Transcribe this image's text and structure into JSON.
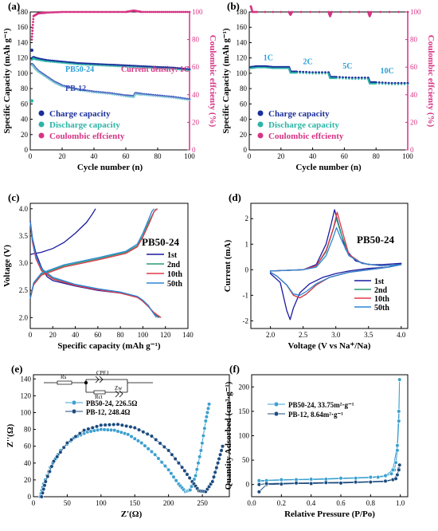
{
  "chart_data": [
    {
      "panel": "(a)",
      "type": "scatter",
      "xlabel": "Cycle number (n)",
      "ylabel": "Specific Capacity (mAh g⁻¹)",
      "y2label": "Coulombic effcienty (%)",
      "xlim": [
        0,
        100
      ],
      "ylim": [
        0,
        180
      ],
      "y2lim": [
        0,
        100
      ],
      "xticks": [
        "0",
        "20",
        "40",
        "60",
        "80",
        "100"
      ],
      "yticks": [
        "0",
        "20",
        "40",
        "60",
        "80",
        "100",
        "120",
        "140",
        "160",
        "180"
      ],
      "y2ticks": [
        "0",
        "20",
        "40",
        "60",
        "80",
        "100"
      ],
      "annotations": [
        "PB50-24",
        "Current density: 1C",
        "PB-12"
      ],
      "legend": [
        "Charge capacity",
        "Discharge capacity",
        "Coulombic effcienty"
      ],
      "legend_position": "bottom-left",
      "series": [
        {
          "name": "PB50-24 charge",
          "x": [
            1,
            2,
            3,
            5,
            10,
            20,
            30,
            40,
            50,
            60,
            70,
            80,
            90,
            100
          ],
          "y": [
            119,
            121,
            120,
            119,
            117,
            115,
            113,
            112,
            111,
            110,
            109,
            108,
            107,
            105
          ]
        },
        {
          "name": "PB-12 charge",
          "x": [
            1,
            2,
            3,
            5,
            10,
            15,
            20,
            30,
            40,
            50,
            60,
            65,
            66,
            70,
            80,
            90,
            100
          ],
          "y": [
            112,
            110,
            107,
            103,
            96,
            89,
            84,
            79,
            76,
            74,
            71,
            70,
            74,
            73,
            71,
            69,
            66
          ]
        },
        {
          "name": "Coulombic effcienty",
          "axis": "y2",
          "x": [
            1,
            2,
            5,
            10,
            20,
            30,
            40,
            50,
            60,
            65,
            70,
            80,
            90,
            100
          ],
          "y": [
            80,
            97,
            99,
            99.5,
            100,
            100,
            100,
            100,
            100,
            101,
            100,
            100,
            100,
            100
          ]
        }
      ]
    },
    {
      "panel": "(b)",
      "type": "scatter",
      "xlabel": "Cycle number (n)",
      "ylabel": "Specific Capacity (mAh g⁻¹)",
      "y2label": "Coulombic effcienty (%)",
      "xlim": [
        0,
        100
      ],
      "ylim": [
        0,
        180
      ],
      "y2lim": [
        0,
        100
      ],
      "xticks": [
        "0",
        "20",
        "40",
        "60",
        "80",
        "100"
      ],
      "yticks": [
        "0",
        "20",
        "40",
        "60",
        "80",
        "100",
        "120",
        "140",
        "160",
        "180"
      ],
      "y2ticks": [
        "0",
        "20",
        "40",
        "60",
        "80",
        "100"
      ],
      "annotations": [
        "1C",
        "2C",
        "5C",
        "10C"
      ],
      "legend": [
        "Charge capacity",
        "Discharge capacity",
        "Coulombic effcienty"
      ],
      "legend_position": "bottom-left",
      "series": [
        {
          "name": "Charge capacity",
          "x": [
            1,
            5,
            10,
            15,
            20,
            25,
            26,
            30,
            40,
            50,
            51,
            55,
            65,
            75,
            76,
            80,
            90,
            100
          ],
          "y": [
            108,
            109,
            109,
            108,
            108,
            108,
            102,
            102,
            101,
            101,
            95,
            95,
            94,
            94,
            88,
            88,
            87,
            87
          ]
        },
        {
          "name": "Coulombic effcienty",
          "axis": "y2",
          "x": [
            1,
            2,
            5,
            25,
            26,
            27,
            50,
            51,
            52,
            75,
            76,
            77,
            100
          ],
          "y": [
            104,
            100,
            100,
            100,
            98,
            100,
            100,
            97,
            100,
            100,
            97,
            100,
            100
          ]
        }
      ]
    },
    {
      "panel": "(c)",
      "type": "line",
      "xlabel": "Specific capacity (mAh g⁻¹)",
      "ylabel": "Voltage (V)",
      "title": "PB50-24",
      "xlim": [
        0,
        140
      ],
      "ylim": [
        1.8,
        4.1
      ],
      "xticks": [
        "0",
        "20",
        "40",
        "60",
        "80",
        "100",
        "120",
        "140"
      ],
      "yticks": [
        "2.0",
        "2.5",
        "3.0",
        "3.5",
        "4.0"
      ],
      "legend": [
        "1st",
        "2nd",
        "10th",
        "50th"
      ],
      "legend_position": "right",
      "colors": [
        "#1a1aa0",
        "#2b9a73",
        "#e0384a",
        "#2c86d6"
      ],
      "series": [
        {
          "name": "1st charge",
          "x": [
            0,
            2,
            10,
            20,
            30,
            40,
            50,
            55,
            58
          ],
          "y": [
            3.16,
            3.17,
            3.2,
            3.27,
            3.38,
            3.55,
            3.75,
            3.9,
            4.0
          ]
        },
        {
          "name": "1st discharge",
          "x": [
            0,
            2,
            5,
            10,
            15,
            20,
            40,
            60,
            80,
            95,
            100,
            105,
            110,
            114
          ],
          "y": [
            3.78,
            3.45,
            3.18,
            2.92,
            2.75,
            2.68,
            2.58,
            2.5,
            2.45,
            2.38,
            2.3,
            2.2,
            2.08,
            2.0
          ]
        },
        {
          "name": "2nd charge",
          "x": [
            0,
            3,
            10,
            30,
            60,
            85,
            95,
            100,
            105,
            110,
            112
          ],
          "y": [
            2.35,
            2.62,
            2.8,
            2.95,
            3.08,
            3.2,
            3.32,
            3.5,
            3.75,
            3.95,
            4.0
          ]
        },
        {
          "name": "2nd discharge",
          "x": [
            0,
            2,
            5,
            10,
            20,
            40,
            60,
            80,
            95,
            100,
            105,
            110,
            115
          ],
          "y": [
            3.75,
            3.4,
            3.1,
            2.88,
            2.72,
            2.6,
            2.52,
            2.46,
            2.38,
            2.3,
            2.2,
            2.08,
            2.0
          ]
        },
        {
          "name": "10th charge",
          "x": [
            0,
            3,
            10,
            30,
            60,
            85,
            95,
            100,
            106,
            110,
            113
          ],
          "y": [
            2.35,
            2.6,
            2.78,
            2.93,
            3.06,
            3.18,
            3.3,
            3.48,
            3.75,
            3.95,
            4.0
          ]
        },
        {
          "name": "10th discharge",
          "x": [
            0,
            2,
            5,
            10,
            20,
            40,
            60,
            80,
            95,
            100,
            105,
            110,
            116
          ],
          "y": [
            3.75,
            3.38,
            3.08,
            2.86,
            2.71,
            2.59,
            2.51,
            2.45,
            2.37,
            2.3,
            2.2,
            2.09,
            2.0
          ]
        },
        {
          "name": "50th charge",
          "x": [
            0,
            3,
            10,
            30,
            60,
            85,
            95,
            100,
            105,
            108,
            110
          ],
          "y": [
            2.35,
            2.64,
            2.82,
            2.97,
            3.1,
            3.22,
            3.35,
            3.55,
            3.8,
            3.95,
            4.0
          ]
        },
        {
          "name": "50th discharge",
          "x": [
            0,
            2,
            5,
            10,
            20,
            40,
            60,
            80,
            95,
            100,
            105,
            108,
            112
          ],
          "y": [
            3.75,
            3.42,
            3.12,
            2.9,
            2.74,
            2.61,
            2.53,
            2.47,
            2.39,
            2.32,
            2.22,
            2.12,
            2.0
          ]
        }
      ]
    },
    {
      "panel": "(d)",
      "type": "line",
      "xlabel": "Voltage (V vs Na⁺/Na)",
      "ylabel": "Current (mA)",
      "title": "PB50-24",
      "xlim": [
        1.7,
        4.1
      ],
      "ylim": [
        -2.3,
        2.6
      ],
      "xticks": [
        "2.0",
        "2.5",
        "3.0",
        "3.5",
        "4.0"
      ],
      "yticks": [
        "-2",
        "-1",
        "0",
        "1",
        "2"
      ],
      "legend": [
        "1st",
        "2nd",
        "10th",
        "50th"
      ],
      "legend_position": "bottom-right",
      "colors": [
        "#1a1aa0",
        "#2b9a73",
        "#e0384a",
        "#2c86d6"
      ],
      "series": [
        {
          "name": "1st",
          "x": [
            2.0,
            2.5,
            2.7,
            2.85,
            2.93,
            2.98,
            3.05,
            3.15,
            3.3,
            3.5,
            3.7,
            4.0,
            3.8,
            3.5,
            3.2,
            3.0,
            2.8,
            2.6,
            2.45,
            2.35,
            2.3,
            2.25,
            2.15,
            2.0
          ],
          "y": [
            -0.05,
            0.0,
            0.2,
            1.0,
            1.8,
            2.35,
            1.7,
            0.8,
            0.35,
            0.2,
            0.2,
            0.25,
            0.1,
            0.05,
            -0.05,
            -0.15,
            -0.3,
            -0.55,
            -0.9,
            -1.5,
            -1.95,
            -1.6,
            -0.5,
            -0.15
          ]
        },
        {
          "name": "2nd",
          "x": [
            2.0,
            2.5,
            2.7,
            2.85,
            2.95,
            3.01,
            3.08,
            3.2,
            3.4,
            3.7,
            4.0,
            3.8,
            3.5,
            3.2,
            2.9,
            2.7,
            2.55,
            2.45,
            2.35,
            2.25,
            2.1,
            2.0
          ],
          "y": [
            -0.05,
            0.0,
            0.15,
            0.7,
            1.5,
            2.0,
            1.4,
            0.6,
            0.25,
            0.15,
            0.2,
            0.1,
            0.0,
            -0.1,
            -0.3,
            -0.6,
            -0.95,
            -1.1,
            -1.0,
            -0.6,
            -0.25,
            -0.1
          ]
        },
        {
          "name": "10th",
          "x": [
            2.0,
            2.5,
            2.7,
            2.85,
            2.96,
            3.02,
            3.1,
            3.2,
            3.4,
            3.7,
            4.0,
            3.8,
            3.5,
            3.2,
            2.9,
            2.7,
            2.55,
            2.45,
            2.35,
            2.25,
            2.1,
            2.0
          ],
          "y": [
            -0.05,
            0.0,
            0.15,
            0.75,
            1.6,
            2.25,
            1.5,
            0.6,
            0.25,
            0.15,
            0.2,
            0.1,
            0.0,
            -0.1,
            -0.3,
            -0.6,
            -0.95,
            -1.1,
            -1.0,
            -0.6,
            -0.25,
            -0.1
          ]
        },
        {
          "name": "50th",
          "x": [
            2.0,
            2.5,
            2.7,
            2.85,
            2.95,
            3.01,
            3.08,
            3.2,
            3.4,
            3.7,
            4.0,
            3.8,
            3.5,
            3.2,
            2.9,
            2.7,
            2.55,
            2.45,
            2.35,
            2.25,
            2.1,
            2.0
          ],
          "y": [
            -0.05,
            0.0,
            0.1,
            0.55,
            1.2,
            1.65,
            1.2,
            0.55,
            0.25,
            0.15,
            0.2,
            0.1,
            0.0,
            -0.1,
            -0.3,
            -0.55,
            -0.85,
            -1.0,
            -0.95,
            -0.6,
            -0.25,
            -0.1
          ]
        }
      ]
    },
    {
      "panel": "(e)",
      "type": "scatter",
      "xlabel": "Z'(Ω)",
      "ylabel": "Z''(Ω)",
      "xlim": [
        0,
        290
      ],
      "ylim": [
        0,
        145
      ],
      "xticks": [
        "0",
        "50",
        "100",
        "150",
        "200",
        "250"
      ],
      "yticks": [
        "0",
        "20",
        "40",
        "60",
        "80",
        "100",
        "120",
        "140"
      ],
      "circuit_labels": [
        "Rs",
        "CPE1",
        "Rct",
        "Zw"
      ],
      "legend": [
        "PB50-24, 226.5Ω",
        "PB-12, 248.4Ω"
      ],
      "legend_position": "top-left",
      "colors": [
        "#3aa0cf",
        "#1b4b7e"
      ],
      "series": [
        {
          "name": "PB50-24, 226.5Ω",
          "x": [
            10,
            15,
            25,
            40,
            60,
            80,
            100,
            120,
            140,
            160,
            180,
            200,
            215,
            225,
            232,
            240,
            248,
            255,
            260
          ],
          "y": [
            0,
            15,
            35,
            55,
            70,
            77,
            80,
            79,
            74,
            64,
            50,
            32,
            15,
            6,
            8,
            25,
            55,
            90,
            110
          ]
        },
        {
          "name": "PB-12, 248.4Ω",
          "x": [
            12,
            18,
            30,
            50,
            75,
            100,
            125,
            150,
            175,
            200,
            220,
            235,
            245,
            255,
            265,
            273,
            280
          ],
          "y": [
            0,
            18,
            42,
            64,
            79,
            85,
            86,
            82,
            72,
            55,
            35,
            18,
            7,
            6,
            18,
            40,
            60
          ]
        }
      ]
    },
    {
      "panel": "(f)",
      "type": "scatter",
      "xlabel": "Relative Pressure (P/Po)",
      "ylabel": "Quantity Adsorbed (cm³·g⁻¹)",
      "xlim": [
        0,
        1.05
      ],
      "ylim": [
        -25,
        225
      ],
      "xticks": [
        "0.0",
        "0.2",
        "0.4",
        "0.6",
        "0.8",
        "1.0"
      ],
      "yticks": [
        "0",
        "50",
        "100",
        "150",
        "200"
      ],
      "legend": [
        "PB50-24, 33.75m²·g⁻¹",
        "PB-12, 8.64m²·g⁻¹"
      ],
      "legend_position": "top-left",
      "colors": [
        "#3aa0cf",
        "#1b4b7e"
      ],
      "series": [
        {
          "name": "PB50-24, 33.75m²·g⁻¹",
          "x": [
            0.05,
            0.1,
            0.2,
            0.3,
            0.4,
            0.5,
            0.6,
            0.7,
            0.8,
            0.85,
            0.9,
            0.94,
            0.96,
            0.97,
            0.98,
            0.99,
            0.995,
            0.99,
            0.98,
            0.95,
            0.9,
            0.8,
            0.6,
            0.4,
            0.2,
            0.05
          ],
          "y": [
            6,
            8,
            9,
            10,
            10,
            11,
            12,
            13,
            14,
            15,
            17,
            22,
            30,
            45,
            70,
            130,
            215,
            150,
            80,
            30,
            18,
            15,
            13,
            11,
            10,
            8
          ]
        },
        {
          "name": "PB-12, 8.64m²·g⁻¹",
          "x": [
            0.05,
            0.1,
            0.2,
            0.3,
            0.4,
            0.5,
            0.6,
            0.7,
            0.8,
            0.9,
            0.95,
            0.98,
            0.99,
            0.995,
            0.99,
            0.97,
            0.9,
            0.7,
            0.5,
            0.3,
            0.1,
            0.05
          ],
          "y": [
            -15,
            0,
            1,
            2,
            2,
            3,
            3,
            4,
            5,
            6,
            10,
            20,
            32,
            40,
            30,
            12,
            7,
            5,
            4,
            3,
            2,
            0
          ]
        }
      ]
    }
  ]
}
